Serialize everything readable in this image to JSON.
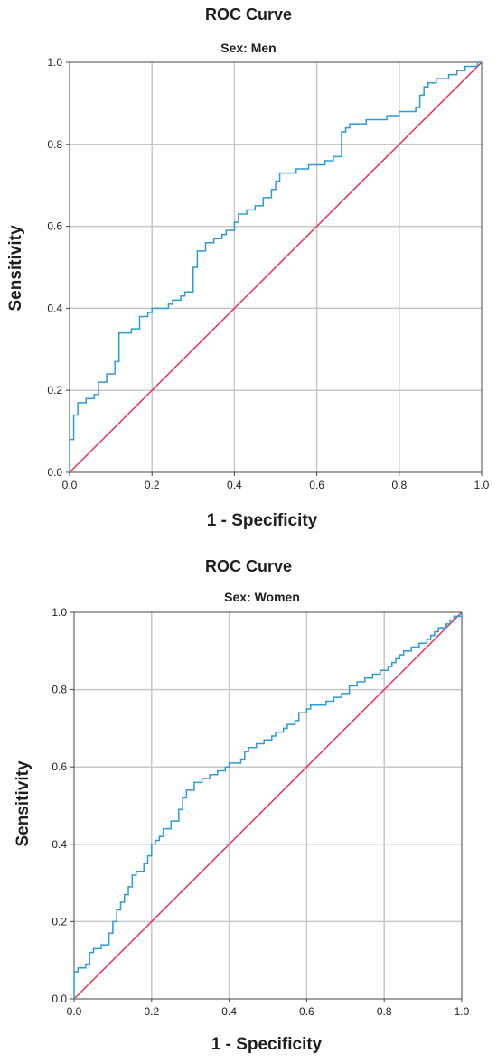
{
  "chart_data": [
    {
      "type": "line",
      "title": "ROC Curve",
      "subtitle": "Sex: Men",
      "xlabel": "1 - Specificity",
      "ylabel": "Sensitivity",
      "xlim": [
        0,
        1
      ],
      "ylim": [
        0,
        1
      ],
      "x_ticks": [
        "0.0",
        "0.2",
        "0.4",
        "0.6",
        "0.8",
        "1.0"
      ],
      "y_ticks": [
        "0.0",
        "0.2",
        "0.4",
        "0.6",
        "0.8",
        "1.0"
      ],
      "grid": true,
      "colors": {
        "roc": "#2a9bd8",
        "reference": "#e8325a",
        "grid": "#c8c8c8"
      },
      "series": [
        {
          "values": [
            [
              0.0,
              0.0
            ],
            [
              0.0,
              0.08
            ],
            [
              0.01,
              0.08
            ],
            [
              0.01,
              0.14
            ],
            [
              0.02,
              0.14
            ],
            [
              0.02,
              0.17
            ],
            [
              0.04,
              0.17
            ],
            [
              0.04,
              0.18
            ],
            [
              0.06,
              0.18
            ],
            [
              0.06,
              0.19
            ],
            [
              0.07,
              0.19
            ],
            [
              0.07,
              0.22
            ],
            [
              0.09,
              0.22
            ],
            [
              0.09,
              0.24
            ],
            [
              0.11,
              0.24
            ],
            [
              0.11,
              0.27
            ],
            [
              0.12,
              0.27
            ],
            [
              0.12,
              0.34
            ],
            [
              0.15,
              0.34
            ],
            [
              0.15,
              0.35
            ],
            [
              0.17,
              0.35
            ],
            [
              0.17,
              0.38
            ],
            [
              0.19,
              0.38
            ],
            [
              0.19,
              0.39
            ],
            [
              0.2,
              0.39
            ],
            [
              0.2,
              0.4
            ],
            [
              0.24,
              0.4
            ],
            [
              0.24,
              0.41
            ],
            [
              0.25,
              0.41
            ],
            [
              0.25,
              0.42
            ],
            [
              0.27,
              0.42
            ],
            [
              0.27,
              0.43
            ],
            [
              0.28,
              0.43
            ],
            [
              0.28,
              0.44
            ],
            [
              0.3,
              0.44
            ],
            [
              0.3,
              0.5
            ],
            [
              0.31,
              0.5
            ],
            [
              0.31,
              0.54
            ],
            [
              0.33,
              0.54
            ],
            [
              0.33,
              0.56
            ],
            [
              0.35,
              0.56
            ],
            [
              0.35,
              0.57
            ],
            [
              0.37,
              0.57
            ],
            [
              0.37,
              0.58
            ],
            [
              0.38,
              0.58
            ],
            [
              0.38,
              0.59
            ],
            [
              0.4,
              0.59
            ],
            [
              0.4,
              0.61
            ],
            [
              0.41,
              0.61
            ],
            [
              0.41,
              0.63
            ],
            [
              0.43,
              0.63
            ],
            [
              0.43,
              0.64
            ],
            [
              0.45,
              0.64
            ],
            [
              0.45,
              0.65
            ],
            [
              0.47,
              0.65
            ],
            [
              0.47,
              0.67
            ],
            [
              0.49,
              0.67
            ],
            [
              0.49,
              0.69
            ],
            [
              0.5,
              0.69
            ],
            [
              0.5,
              0.71
            ],
            [
              0.51,
              0.71
            ],
            [
              0.51,
              0.73
            ],
            [
              0.55,
              0.73
            ],
            [
              0.55,
              0.74
            ],
            [
              0.58,
              0.74
            ],
            [
              0.58,
              0.75
            ],
            [
              0.62,
              0.75
            ],
            [
              0.62,
              0.76
            ],
            [
              0.64,
              0.76
            ],
            [
              0.64,
              0.77
            ],
            [
              0.66,
              0.77
            ],
            [
              0.66,
              0.83
            ],
            [
              0.67,
              0.83
            ],
            [
              0.67,
              0.84
            ],
            [
              0.68,
              0.84
            ],
            [
              0.68,
              0.85
            ],
            [
              0.72,
              0.85
            ],
            [
              0.72,
              0.86
            ],
            [
              0.77,
              0.86
            ],
            [
              0.77,
              0.87
            ],
            [
              0.8,
              0.87
            ],
            [
              0.8,
              0.88
            ],
            [
              0.84,
              0.88
            ],
            [
              0.84,
              0.89
            ],
            [
              0.85,
              0.89
            ],
            [
              0.85,
              0.92
            ],
            [
              0.86,
              0.92
            ],
            [
              0.86,
              0.94
            ],
            [
              0.87,
              0.94
            ],
            [
              0.87,
              0.95
            ],
            [
              0.89,
              0.95
            ],
            [
              0.89,
              0.96
            ],
            [
              0.92,
              0.96
            ],
            [
              0.92,
              0.97
            ],
            [
              0.94,
              0.97
            ],
            [
              0.94,
              0.98
            ],
            [
              0.96,
              0.98
            ],
            [
              0.96,
              0.99
            ],
            [
              0.99,
              0.99
            ],
            [
              0.99,
              1.0
            ],
            [
              1.0,
              1.0
            ]
          ]
        },
        {
          "values": [
            [
              0,
              0
            ],
            [
              1,
              1
            ]
          ]
        }
      ]
    },
    {
      "type": "line",
      "title": "ROC Curve",
      "subtitle": "Sex: Women",
      "xlabel": "1 - Specificity",
      "ylabel": "Sensitivity",
      "xlim": [
        0,
        1
      ],
      "ylim": [
        0,
        1
      ],
      "x_ticks": [
        "0.0",
        "0.2",
        "0.4",
        "0.6",
        "0.8",
        "1.0"
      ],
      "y_ticks": [
        "0.0",
        "0.2",
        "0.4",
        "0.6",
        "0.8",
        "1.0"
      ],
      "grid": true,
      "colors": {
        "roc": "#2a9bd8",
        "reference": "#e8325a",
        "grid": "#c8c8c8"
      },
      "series": [
        {
          "values": [
            [
              0.0,
              0.0
            ],
            [
              0.0,
              0.07
            ],
            [
              0.01,
              0.07
            ],
            [
              0.01,
              0.08
            ],
            [
              0.03,
              0.08
            ],
            [
              0.03,
              0.09
            ],
            [
              0.04,
              0.09
            ],
            [
              0.04,
              0.12
            ],
            [
              0.05,
              0.12
            ],
            [
              0.05,
              0.13
            ],
            [
              0.07,
              0.13
            ],
            [
              0.07,
              0.14
            ],
            [
              0.09,
              0.14
            ],
            [
              0.09,
              0.17
            ],
            [
              0.1,
              0.17
            ],
            [
              0.1,
              0.2
            ],
            [
              0.11,
              0.2
            ],
            [
              0.11,
              0.23
            ],
            [
              0.12,
              0.23
            ],
            [
              0.12,
              0.25
            ],
            [
              0.13,
              0.25
            ],
            [
              0.13,
              0.27
            ],
            [
              0.14,
              0.27
            ],
            [
              0.14,
              0.29
            ],
            [
              0.15,
              0.29
            ],
            [
              0.15,
              0.32
            ],
            [
              0.16,
              0.32
            ],
            [
              0.16,
              0.33
            ],
            [
              0.18,
              0.33
            ],
            [
              0.18,
              0.35
            ],
            [
              0.19,
              0.35
            ],
            [
              0.19,
              0.37
            ],
            [
              0.2,
              0.37
            ],
            [
              0.2,
              0.4
            ],
            [
              0.21,
              0.4
            ],
            [
              0.21,
              0.41
            ],
            [
              0.22,
              0.41
            ],
            [
              0.22,
              0.42
            ],
            [
              0.23,
              0.42
            ],
            [
              0.23,
              0.44
            ],
            [
              0.25,
              0.44
            ],
            [
              0.25,
              0.46
            ],
            [
              0.27,
              0.46
            ],
            [
              0.27,
              0.49
            ],
            [
              0.28,
              0.49
            ],
            [
              0.28,
              0.52
            ],
            [
              0.29,
              0.52
            ],
            [
              0.29,
              0.54
            ],
            [
              0.31,
              0.54
            ],
            [
              0.31,
              0.56
            ],
            [
              0.33,
              0.56
            ],
            [
              0.33,
              0.57
            ],
            [
              0.35,
              0.57
            ],
            [
              0.35,
              0.58
            ],
            [
              0.37,
              0.58
            ],
            [
              0.37,
              0.59
            ],
            [
              0.39,
              0.59
            ],
            [
              0.39,
              0.6
            ],
            [
              0.4,
              0.6
            ],
            [
              0.4,
              0.61
            ],
            [
              0.43,
              0.61
            ],
            [
              0.43,
              0.62
            ],
            [
              0.44,
              0.62
            ],
            [
              0.44,
              0.64
            ],
            [
              0.45,
              0.64
            ],
            [
              0.45,
              0.65
            ],
            [
              0.47,
              0.65
            ],
            [
              0.47,
              0.66
            ],
            [
              0.49,
              0.66
            ],
            [
              0.49,
              0.67
            ],
            [
              0.51,
              0.67
            ],
            [
              0.51,
              0.68
            ],
            [
              0.52,
              0.68
            ],
            [
              0.52,
              0.69
            ],
            [
              0.54,
              0.69
            ],
            [
              0.54,
              0.7
            ],
            [
              0.55,
              0.7
            ],
            [
              0.55,
              0.71
            ],
            [
              0.57,
              0.71
            ],
            [
              0.57,
              0.72
            ],
            [
              0.58,
              0.72
            ],
            [
              0.58,
              0.74
            ],
            [
              0.6,
              0.74
            ],
            [
              0.6,
              0.75
            ],
            [
              0.61,
              0.75
            ],
            [
              0.61,
              0.76
            ],
            [
              0.65,
              0.76
            ],
            [
              0.65,
              0.77
            ],
            [
              0.67,
              0.77
            ],
            [
              0.67,
              0.78
            ],
            [
              0.69,
              0.78
            ],
            [
              0.69,
              0.79
            ],
            [
              0.71,
              0.79
            ],
            [
              0.71,
              0.81
            ],
            [
              0.73,
              0.81
            ],
            [
              0.73,
              0.82
            ],
            [
              0.75,
              0.82
            ],
            [
              0.75,
              0.83
            ],
            [
              0.77,
              0.83
            ],
            [
              0.77,
              0.84
            ],
            [
              0.79,
              0.84
            ],
            [
              0.79,
              0.85
            ],
            [
              0.81,
              0.85
            ],
            [
              0.81,
              0.86
            ],
            [
              0.82,
              0.86
            ],
            [
              0.82,
              0.87
            ],
            [
              0.83,
              0.87
            ],
            [
              0.83,
              0.88
            ],
            [
              0.84,
              0.88
            ],
            [
              0.84,
              0.89
            ],
            [
              0.85,
              0.89
            ],
            [
              0.85,
              0.9
            ],
            [
              0.87,
              0.9
            ],
            [
              0.87,
              0.91
            ],
            [
              0.89,
              0.91
            ],
            [
              0.89,
              0.92
            ],
            [
              0.91,
              0.92
            ],
            [
              0.91,
              0.93
            ],
            [
              0.92,
              0.93
            ],
            [
              0.92,
              0.94
            ],
            [
              0.93,
              0.94
            ],
            [
              0.93,
              0.95
            ],
            [
              0.94,
              0.95
            ],
            [
              0.94,
              0.96
            ],
            [
              0.96,
              0.96
            ],
            [
              0.96,
              0.97
            ],
            [
              0.97,
              0.97
            ],
            [
              0.97,
              0.98
            ],
            [
              0.98,
              0.98
            ],
            [
              0.98,
              0.99
            ],
            [
              1.0,
              0.99
            ],
            [
              1.0,
              1.0
            ]
          ]
        },
        {
          "values": [
            [
              0,
              0
            ],
            [
              1,
              1
            ]
          ]
        }
      ]
    }
  ]
}
